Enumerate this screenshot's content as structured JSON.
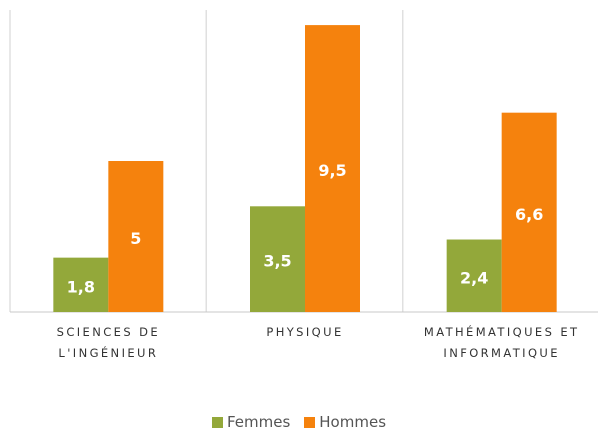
{
  "chart_data": {
    "type": "bar",
    "categories": [
      "SCIENCES DE L'INGÉNIEUR",
      "PHYSIQUE",
      "MATHÉMATIQUES ET INFORMATIQUE"
    ],
    "series": [
      {
        "name": "Femmes",
        "color": "#93a83a",
        "values": [
          1.8,
          3.5,
          2.4
        ],
        "value_labels": [
          "1,8",
          "3,5",
          "2,4"
        ]
      },
      {
        "name": "Hommes",
        "color": "#f5820d",
        "values": [
          5,
          9.5,
          6.6
        ],
        "value_labels": [
          "5",
          "9,5",
          "6,6"
        ]
      }
    ],
    "ylim": [
      0,
      10
    ],
    "legend": "bottom"
  }
}
